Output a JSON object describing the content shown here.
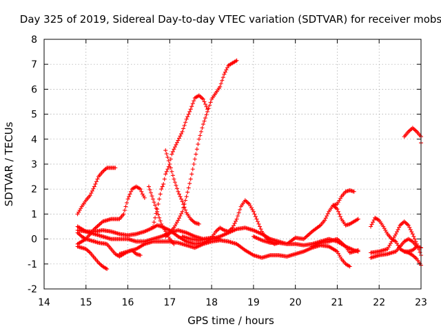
{
  "chart_data": {
    "type": "scatter",
    "title": "Day 325 of 2019, Sidereal Day-to-day VTEC variation (SDTVAR) for receiver mobs",
    "xlabel": "GPS time / hours",
    "ylabel": "SDTVAR / TECUs",
    "xlim": [
      14,
      23
    ],
    "ylim": [
      -2,
      8
    ],
    "xticks": [
      "14",
      "15",
      "16",
      "17",
      "18",
      "19",
      "20",
      "21",
      "22",
      "23"
    ],
    "yticks": [
      "-2",
      "-1",
      "0",
      "1",
      "2",
      "3",
      "4",
      "5",
      "6",
      "7",
      "8"
    ],
    "grid": true,
    "marker": "+",
    "color": "#ff0000",
    "tracks": [
      [
        [
          14.8,
          -0.3
        ],
        [
          15.0,
          -0.4
        ],
        [
          15.1,
          -0.55
        ],
        [
          15.2,
          -0.75
        ],
        [
          15.3,
          -0.95
        ],
        [
          15.4,
          -1.1
        ],
        [
          15.5,
          -1.2
        ]
      ],
      [
        [
          14.8,
          0.25
        ],
        [
          14.9,
          0.1
        ],
        [
          15.0,
          0.0
        ],
        [
          15.1,
          -0.05
        ],
        [
          15.2,
          -0.1
        ],
        [
          15.3,
          -0.15
        ],
        [
          15.5,
          -0.2
        ],
        [
          15.6,
          -0.4
        ],
        [
          15.7,
          -0.6
        ],
        [
          15.8,
          -0.7
        ],
        [
          15.9,
          -0.6
        ],
        [
          16.0,
          -0.5
        ],
        [
          16.1,
          -0.45
        ],
        [
          16.2,
          -0.6
        ],
        [
          16.3,
          -0.65
        ]
      ],
      [
        [
          14.8,
          0.5
        ],
        [
          14.9,
          0.4
        ],
        [
          15.0,
          0.3
        ],
        [
          15.2,
          0.2
        ],
        [
          15.4,
          0.1
        ],
        [
          15.6,
          0.0
        ],
        [
          15.8,
          0.0
        ],
        [
          16.0,
          0.0
        ],
        [
          16.2,
          -0.1
        ],
        [
          16.4,
          -0.1
        ],
        [
          16.6,
          0.0
        ],
        [
          16.8,
          0.1
        ],
        [
          17.0,
          0.25
        ],
        [
          17.2,
          0.35
        ],
        [
          17.4,
          0.25
        ],
        [
          17.6,
          0.1
        ],
        [
          17.8,
          0.0
        ],
        [
          18.0,
          0.05
        ],
        [
          18.2,
          0.0
        ]
      ],
      [
        [
          14.8,
          0.35
        ],
        [
          15.0,
          0.3
        ],
        [
          15.2,
          0.3
        ],
        [
          15.4,
          0.35
        ],
        [
          15.6,
          0.3
        ],
        [
          15.8,
          0.2
        ],
        [
          16.0,
          0.15
        ],
        [
          16.2,
          0.2
        ],
        [
          16.4,
          0.3
        ],
        [
          16.6,
          0.45
        ],
        [
          16.7,
          0.55
        ],
        [
          16.8,
          0.5
        ],
        [
          17.0,
          0.35
        ],
        [
          17.2,
          0.1
        ],
        [
          17.4,
          -0.1
        ],
        [
          17.6,
          -0.2
        ],
        [
          17.8,
          -0.15
        ],
        [
          18.0,
          0.0
        ],
        [
          18.2,
          0.1
        ],
        [
          18.4,
          0.25
        ],
        [
          18.6,
          0.4
        ],
        [
          18.8,
          0.45
        ],
        [
          19.0,
          0.35
        ],
        [
          19.2,
          0.2
        ],
        [
          19.4,
          0.0
        ],
        [
          19.6,
          -0.1
        ],
        [
          19.8,
          -0.2
        ],
        [
          20.0,
          -0.2
        ],
        [
          20.2,
          -0.25
        ],
        [
          20.4,
          -0.2
        ],
        [
          20.6,
          -0.1
        ],
        [
          20.8,
          0.0
        ],
        [
          21.0,
          -0.1
        ],
        [
          21.2,
          -0.3
        ],
        [
          21.4,
          -0.45
        ],
        [
          21.5,
          -0.5
        ]
      ],
      [
        [
          14.8,
          1.0
        ],
        [
          14.9,
          1.3
        ],
        [
          15.0,
          1.55
        ],
        [
          15.1,
          1.75
        ],
        [
          15.2,
          2.1
        ],
        [
          15.3,
          2.5
        ],
        [
          15.4,
          2.7
        ],
        [
          15.5,
          2.85
        ],
        [
          15.6,
          2.85
        ],
        [
          15.7,
          2.85
        ]
      ],
      [
        [
          14.8,
          -0.2
        ],
        [
          15.0,
          0.0
        ],
        [
          15.2,
          0.4
        ],
        [
          15.4,
          0.7
        ],
        [
          15.6,
          0.8
        ],
        [
          15.8,
          0.8
        ],
        [
          15.9,
          1.0
        ],
        [
          16.0,
          1.6
        ],
        [
          16.1,
          2.0
        ],
        [
          16.2,
          2.1
        ],
        [
          16.3,
          2.0
        ],
        [
          16.35,
          1.8
        ],
        [
          16.4,
          1.65
        ]
      ],
      [
        [
          15.8,
          -0.6
        ],
        [
          16.0,
          -0.5
        ],
        [
          16.2,
          -0.4
        ],
        [
          16.4,
          -0.2
        ],
        [
          16.6,
          -0.1
        ],
        [
          16.8,
          -0.1
        ],
        [
          17.0,
          -0.1
        ],
        [
          17.2,
          -0.15
        ],
        [
          17.4,
          -0.25
        ],
        [
          17.6,
          -0.35
        ],
        [
          17.8,
          -0.2
        ],
        [
          18.0,
          -0.1
        ],
        [
          18.2,
          -0.05
        ],
        [
          18.4,
          -0.1
        ],
        [
          18.6,
          -0.2
        ],
        [
          18.8,
          -0.45
        ],
        [
          19.0,
          -0.65
        ],
        [
          19.2,
          -0.75
        ],
        [
          19.4,
          -0.65
        ],
        [
          19.6,
          -0.65
        ],
        [
          19.8,
          -0.7
        ],
        [
          20.0,
          -0.6
        ],
        [
          20.2,
          -0.5
        ],
        [
          20.4,
          -0.35
        ],
        [
          20.6,
          -0.25
        ],
        [
          20.8,
          -0.3
        ],
        [
          21.0,
          -0.5
        ],
        [
          21.1,
          -0.8
        ],
        [
          21.2,
          -1.0
        ],
        [
          21.3,
          -1.1
        ]
      ],
      [
        [
          16.5,
          2.1
        ],
        [
          16.6,
          1.6
        ],
        [
          16.7,
          1.1
        ],
        [
          16.8,
          0.6
        ],
        [
          16.9,
          0.3
        ],
        [
          17.0,
          0.0
        ],
        [
          17.1,
          -0.2
        ]
      ],
      [
        [
          16.6,
          0.5
        ],
        [
          16.7,
          1.2
        ],
        [
          16.8,
          2.0
        ],
        [
          16.85,
          2.2
        ],
        [
          16.9,
          2.6
        ],
        [
          17.0,
          3.0
        ],
        [
          17.05,
          3.4
        ],
        [
          17.1,
          3.6
        ],
        [
          17.2,
          3.95
        ],
        [
          17.3,
          4.3
        ],
        [
          17.4,
          4.8
        ],
        [
          17.5,
          5.2
        ],
        [
          17.6,
          5.65
        ],
        [
          17.7,
          5.75
        ],
        [
          17.8,
          5.6
        ],
        [
          17.85,
          5.4
        ],
        [
          17.9,
          5.2
        ]
      ],
      [
        [
          16.9,
          3.55
        ],
        [
          17.0,
          3.0
        ],
        [
          17.1,
          2.4
        ],
        [
          17.2,
          1.9
        ],
        [
          17.3,
          1.5
        ],
        [
          17.4,
          1.05
        ],
        [
          17.5,
          0.8
        ],
        [
          17.6,
          0.65
        ],
        [
          17.7,
          0.6
        ]
      ],
      [
        [
          16.9,
          0.1
        ],
        [
          17.0,
          0.25
        ],
        [
          17.1,
          0.45
        ],
        [
          17.2,
          0.75
        ],
        [
          17.3,
          1.1
        ],
        [
          17.4,
          1.7
        ],
        [
          17.5,
          2.4
        ],
        [
          17.6,
          3.2
        ],
        [
          17.7,
          4.0
        ],
        [
          17.8,
          4.6
        ],
        [
          17.9,
          5.1
        ],
        [
          18.0,
          5.6
        ],
        [
          18.1,
          5.85
        ],
        [
          18.2,
          6.1
        ],
        [
          18.3,
          6.6
        ],
        [
          18.4,
          6.95
        ],
        [
          18.5,
          7.05
        ],
        [
          18.6,
          7.15
        ]
      ],
      [
        [
          17.3,
          0.1
        ],
        [
          17.5,
          0.0
        ],
        [
          17.7,
          -0.05
        ],
        [
          17.9,
          0.0
        ],
        [
          18.0,
          0.05
        ],
        [
          18.1,
          0.3
        ],
        [
          18.2,
          0.45
        ],
        [
          18.3,
          0.35
        ],
        [
          18.4,
          0.3
        ],
        [
          18.5,
          0.45
        ],
        [
          18.6,
          0.8
        ],
        [
          18.7,
          1.3
        ],
        [
          18.8,
          1.55
        ],
        [
          18.9,
          1.4
        ],
        [
          19.0,
          1.1
        ],
        [
          19.1,
          0.7
        ],
        [
          19.2,
          0.3
        ],
        [
          19.3,
          0.05
        ],
        [
          19.4,
          -0.1
        ],
        [
          19.5,
          -0.2
        ],
        [
          19.6,
          -0.15
        ]
      ],
      [
        [
          19.0,
          0.1
        ],
        [
          19.2,
          -0.05
        ],
        [
          19.4,
          -0.15
        ],
        [
          19.6,
          -0.15
        ],
        [
          19.8,
          -0.2
        ],
        [
          20.0,
          0.05
        ],
        [
          20.2,
          0.0
        ],
        [
          20.4,
          0.3
        ],
        [
          20.6,
          0.55
        ],
        [
          20.7,
          0.75
        ],
        [
          20.8,
          1.1
        ],
        [
          20.9,
          1.35
        ],
        [
          21.0,
          1.4
        ],
        [
          21.1,
          1.7
        ],
        [
          21.2,
          1.9
        ],
        [
          21.3,
          1.95
        ],
        [
          21.4,
          1.9
        ]
      ],
      [
        [
          20.4,
          -0.3
        ],
        [
          20.6,
          -0.15
        ],
        [
          20.8,
          -0.1
        ],
        [
          21.0,
          0.0
        ],
        [
          21.2,
          -0.3
        ],
        [
          21.3,
          -0.55
        ],
        [
          21.4,
          -0.5
        ],
        [
          21.5,
          -0.45
        ]
      ],
      [
        [
          20.9,
          1.35
        ],
        [
          21.0,
          1.2
        ],
        [
          21.1,
          0.8
        ],
        [
          21.2,
          0.55
        ],
        [
          21.3,
          0.6
        ],
        [
          21.4,
          0.7
        ],
        [
          21.5,
          0.8
        ]
      ],
      [
        [
          21.8,
          0.5
        ],
        [
          21.9,
          0.85
        ],
        [
          22.0,
          0.75
        ],
        [
          22.1,
          0.5
        ],
        [
          22.2,
          0.2
        ],
        [
          22.3,
          0.0
        ],
        [
          22.4,
          -0.1
        ],
        [
          22.5,
          -0.4
        ],
        [
          22.6,
          -0.5
        ],
        [
          22.7,
          -0.5
        ],
        [
          22.8,
          -0.45
        ],
        [
          22.9,
          -0.3
        ],
        [
          23.0,
          -0.35
        ]
      ],
      [
        [
          21.8,
          -0.75
        ],
        [
          22.0,
          -0.65
        ],
        [
          22.2,
          -0.6
        ],
        [
          22.4,
          -0.5
        ],
        [
          22.5,
          -0.3
        ],
        [
          22.6,
          -0.1
        ],
        [
          22.7,
          0.0
        ],
        [
          22.8,
          -0.1
        ],
        [
          22.9,
          -0.3
        ],
        [
          23.0,
          -0.35
        ]
      ],
      [
        [
          21.8,
          -0.55
        ],
        [
          22.0,
          -0.5
        ],
        [
          22.2,
          -0.4
        ],
        [
          22.3,
          -0.1
        ],
        [
          22.4,
          0.2
        ],
        [
          22.5,
          0.55
        ],
        [
          22.6,
          0.7
        ],
        [
          22.7,
          0.55
        ],
        [
          22.8,
          0.2
        ],
        [
          22.9,
          -0.2
        ],
        [
          23.0,
          -0.65
        ]
      ],
      [
        [
          22.6,
          -0.5
        ],
        [
          22.7,
          -0.55
        ],
        [
          22.8,
          -0.65
        ],
        [
          22.9,
          -0.8
        ],
        [
          23.0,
          -1.05
        ]
      ],
      [
        [
          22.6,
          4.1
        ],
        [
          22.7,
          4.3
        ],
        [
          22.8,
          4.45
        ],
        [
          22.9,
          4.3
        ],
        [
          23.0,
          4.1
        ],
        [
          23.0,
          3.85
        ]
      ]
    ]
  }
}
